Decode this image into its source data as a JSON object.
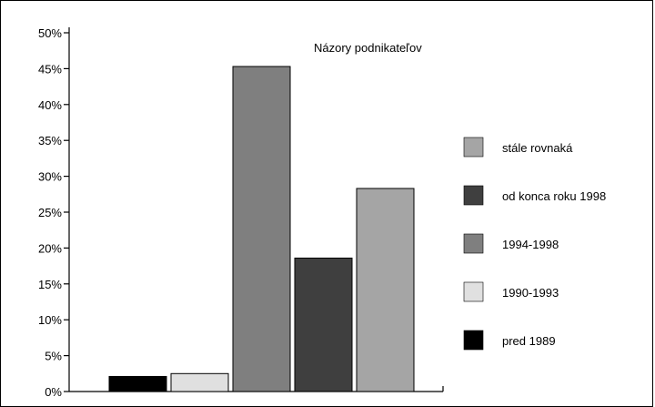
{
  "chart_data": {
    "type": "bar",
    "title": "Názory podnikateľov",
    "xlabel": "",
    "ylabel": "",
    "ylim": [
      0,
      50
    ],
    "yticks": [
      "0%",
      "5%",
      "10%",
      "15%",
      "20%",
      "25%",
      "30%",
      "35%",
      "40%",
      "45%",
      "50%"
    ],
    "ytick_values": [
      0,
      5,
      10,
      15,
      20,
      25,
      30,
      35,
      40,
      45,
      50
    ],
    "grid": false,
    "legend_position": "right",
    "series": [
      {
        "name": "pred 1989",
        "value": 2.1,
        "color": "#000000"
      },
      {
        "name": "1990-1993",
        "value": 2.5,
        "color": "#e0e0e0"
      },
      {
        "name": "1994-1998",
        "value": 45.3,
        "color": "#7f7f7f"
      },
      {
        "name": "od konca roku 1998",
        "value": 18.6,
        "color": "#3f3f3f"
      },
      {
        "name": "stále rovnaká",
        "value": 28.3,
        "color": "#a5a5a5"
      }
    ],
    "legend_order": [
      "stále rovnaká",
      "od konca roku 1998",
      "1994-1998",
      "1990-1993",
      "pred 1989"
    ]
  }
}
